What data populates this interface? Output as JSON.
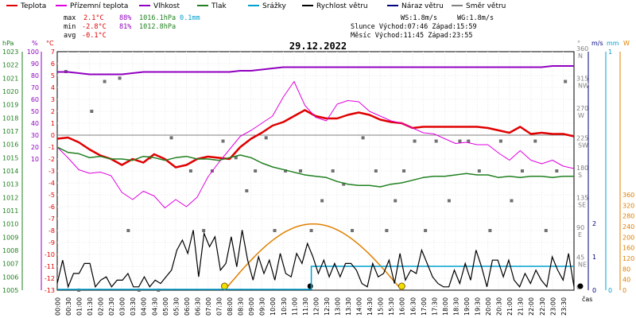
{
  "chart_data": {
    "type": "line",
    "title": "29.12.2022",
    "legend": [
      {
        "label": "Teplota",
        "color": "#e00000"
      },
      {
        "label": "Přízemní teplota",
        "color": "#e000e0"
      },
      {
        "label": "Vlhkost",
        "color": "#9000c0"
      },
      {
        "label": "Tlak",
        "color": "#208020"
      },
      {
        "label": "Srážky",
        "color": "#00a0d0"
      },
      {
        "label": "Rychlost větru",
        "color": "#000000"
      },
      {
        "label": "Náraz větru",
        "color": "#000080"
      },
      {
        "label": "Směr větru",
        "color": "#808080"
      }
    ],
    "stats": {
      "max_label": "max",
      "min_label": "min",
      "avg_label": "avg",
      "max_temp": "2.1°C",
      "max_hum": "88%",
      "max_press": "1016.1hPa",
      "max_rain": "0.1mm",
      "min_temp": "-2.8°C",
      "min_hum": "81%",
      "min_press": "1012.8hPa",
      "avg_temp": "-0.1°C",
      "ws": "WS:1.8m/s",
      "wg": "WG:1.8m/s",
      "sun": "Slunce Východ:07:46  Západ:15:59",
      "moon": "Měsíc  Východ:11:45  Západ:23:55"
    },
    "axes": {
      "hpa_label": "hPa",
      "pct_label": "%",
      "temp_label": "°C",
      "deg_label": "°",
      "ms_label": "m/s",
      "mm_label": "mm",
      "w_label": "W",
      "time_label": "čas",
      "hpa_ticks": [
        "1023",
        "1022",
        "1021",
        "1020",
        "1019",
        "1018",
        "1017",
        "1016",
        "1015",
        "1014",
        "1013",
        "1012",
        "1011",
        "1010",
        "1009",
        "1008",
        "1007",
        "1006",
        "1005"
      ],
      "pct_ticks": [
        "100",
        "90",
        "80",
        "70",
        "60",
        "50",
        "40",
        "30",
        "20",
        "10"
      ],
      "temp_ticks": [
        "7",
        "6",
        "5",
        "4",
        "3",
        "2",
        "1",
        "0",
        "-1",
        "-2",
        "-3",
        "-4",
        "-5",
        "-6",
        "-7",
        "-8",
        "-9",
        "-10",
        "-11",
        "-12",
        "-13"
      ],
      "dir_ticks": [
        {
          "deg": "360",
          "dir": "N"
        },
        {
          "deg": "315",
          "dir": "NW"
        },
        {
          "deg": "270",
          "dir": "W"
        },
        {
          "deg": "225",
          "dir": "SW"
        },
        {
          "deg": "180",
          "dir": "S"
        },
        {
          "deg": "135",
          "dir": "SE"
        },
        {
          "deg": "90",
          "dir": "E"
        },
        {
          "deg": "45",
          "dir": "NE"
        },
        {
          "deg": "0",
          "dir": ""
        }
      ],
      "ms_ticks": [
        "2",
        "1",
        "0"
      ],
      "mm_ticks": [
        "1",
        "0"
      ],
      "w_ticks": [
        "360",
        "320",
        "280",
        "240",
        "200",
        "160",
        "120",
        "80",
        "40",
        "0"
      ],
      "time_ticks": [
        "00:00",
        "00:30",
        "01:00",
        "01:30",
        "02:00",
        "02:30",
        "03:00",
        "03:30",
        "04:00",
        "04:30",
        "05:00",
        "05:30",
        "06:00",
        "06:30",
        "07:00",
        "07:30",
        "08:00",
        "08:30",
        "09:00",
        "09:30",
        "10:00",
        "10:30",
        "11:00",
        "11:30",
        "12:00",
        "12:30",
        "13:00",
        "13:30",
        "14:00",
        "14:30",
        "15:00",
        "15:30",
        "16:00",
        "16:30",
        "17:00",
        "17:30",
        "18:00",
        "18:30",
        "19:00",
        "19:30",
        "20:00",
        "20:30",
        "21:00",
        "21:30",
        "22:00",
        "22:30",
        "23:00",
        "23:30"
      ]
    },
    "temp_range": [
      -13,
      7
    ],
    "hours": [
      0,
      0.5,
      1,
      1.5,
      2,
      2.5,
      3,
      3.5,
      4,
      4.5,
      5,
      5.5,
      6,
      6.5,
      7,
      7.5,
      8,
      8.5,
      9,
      9.5,
      10,
      10.5,
      11,
      11.5,
      12,
      12.5,
      13,
      13.5,
      14,
      14.5,
      15,
      15.5,
      16,
      16.5,
      17,
      17.5,
      18,
      18.5,
      19,
      19.5,
      20,
      20.5,
      21,
      21.5,
      22,
      22.5,
      23,
      23.5,
      24
    ],
    "series": [
      {
        "name": "Teplota",
        "color": "#e00000",
        "width": 2.5,
        "values": [
          -0.3,
          -0.2,
          -0.6,
          -1.2,
          -1.7,
          -2.0,
          -2.5,
          -2.0,
          -2.3,
          -1.6,
          -2.0,
          -2.7,
          -2.5,
          -2.0,
          -1.8,
          -1.9,
          -2.0,
          -1.0,
          -0.3,
          0.2,
          0.8,
          1.1,
          1.6,
          2.1,
          1.6,
          1.4,
          1.4,
          1.7,
          1.9,
          1.7,
          1.3,
          1.1,
          1.0,
          0.6,
          0.7,
          0.7,
          0.7,
          0.7,
          0.7,
          0.7,
          0.6,
          0.4,
          0.2,
          0.7,
          0.1,
          0.2,
          0.1,
          0.1,
          -0.1
        ]
      },
      {
        "name": "Přízemní teplota",
        "color": "#e000e0",
        "width": 1,
        "values": [
          -1.0,
          -1.9,
          -2.9,
          -3.2,
          -3.1,
          -3.4,
          -4.8,
          -5.4,
          -4.7,
          -5.1,
          -6.1,
          -5.4,
          -6.0,
          -5.2,
          -3.5,
          -2.3,
          -1.2,
          -0.1,
          0.4,
          1.0,
          1.6,
          3.2,
          4.5,
          2.5,
          1.5,
          1.2,
          2.6,
          2.9,
          2.8,
          2.0,
          1.6,
          1.2,
          1.0,
          0.6,
          0.2,
          0.1,
          -0.3,
          -0.7,
          -0.6,
          -0.8,
          -0.8,
          -1.5,
          -2.1,
          -1.3,
          -2.1,
          -2.4,
          -2.1,
          -2.6,
          -2.8
        ]
      },
      {
        "name": "Vlhkost",
        "color": "#9000c0",
        "width": 2,
        "values": [
          83,
          83,
          82,
          81,
          81,
          81,
          81,
          82,
          83,
          83,
          83,
          83,
          83,
          83,
          83,
          83,
          83,
          84,
          84,
          85,
          86,
          87,
          87,
          87,
          87,
          87,
          87,
          87,
          87,
          87,
          87,
          87,
          87,
          87,
          87,
          87,
          87,
          87,
          87,
          87,
          87,
          87,
          87,
          87,
          87,
          87,
          88,
          88,
          88
        ]
      },
      {
        "name": "Tlak",
        "color": "#208020",
        "width": 1.5,
        "values": [
          1015.8,
          1015.4,
          1015.3,
          1015.0,
          1015.1,
          1014.9,
          1014.9,
          1014.8,
          1015.1,
          1015.0,
          1014.8,
          1015.0,
          1015.1,
          1014.9,
          1014.9,
          1014.8,
          1015.0,
          1015.2,
          1015.0,
          1014.6,
          1014.3,
          1014.1,
          1013.9,
          1013.7,
          1013.6,
          1013.5,
          1013.2,
          1013.0,
          1012.9,
          1012.9,
          1012.8,
          1013.0,
          1013.1,
          1013.3,
          1013.5,
          1013.6,
          1013.6,
          1013.7,
          1013.8,
          1013.7,
          1013.7,
          1013.5,
          1013.6,
          1013.5,
          1013.6,
          1013.6,
          1013.5,
          1013.6,
          1013.6
        ]
      }
    ],
    "wind_speed_ms": {
      "name": "Rychlost větru",
      "color": "#000000",
      "values": [
        0.2,
        0.9,
        0.1,
        0.5,
        0.5,
        0.8,
        0.8,
        0.1,
        0.3,
        0.4,
        0.1,
        0.3,
        0.3,
        0.5,
        0.1,
        0.1,
        0.4,
        0.1,
        0.3,
        0.2,
        0.4,
        0.6,
        1.2,
        1.5,
        1.1,
        1.8,
        0.4,
        1.7,
        1.3,
        1.6,
        0.6,
        0.8,
        1.6,
        0.7,
        1.8,
        0.9,
        0.3,
        1.0,
        0.5,
        0.9,
        0.3,
        1.1,
        0.5,
        0.4,
        1.1,
        0.8,
        1.4,
        1.0,
        0.5,
        0.9,
        0.4,
        0.8,
        0.4,
        0.8,
        0.8,
        0.6,
        0.2,
        0.1,
        0.8,
        0.4,
        0.5,
        0.9,
        0.2,
        1.1,
        0.3,
        0.6,
        0.5,
        1.2,
        0.8,
        0.4,
        0.2,
        0.1,
        0.1,
        0.6,
        0.2,
        0.8,
        0.3,
        1.2,
        0.7,
        0.1,
        0.9,
        0.9,
        0.4,
        0.9,
        0.3,
        0.1,
        0.5,
        0.2,
        0.6,
        0.3,
        0.1,
        1.0,
        0.6,
        0.3,
        1.1,
        0.1
      ]
    },
    "wind_gust_ms_label": "Náraz větru",
    "wind_dir_points": [
      [
        0.4,
        330
      ],
      [
        1.0,
        0
      ],
      [
        1.6,
        270
      ],
      [
        2.2,
        315
      ],
      [
        2.9,
        320
      ],
      [
        3.3,
        90
      ],
      [
        3.8,
        0
      ],
      [
        4.3,
        200
      ],
      [
        4.7,
        0
      ],
      [
        5.3,
        230
      ],
      [
        6.2,
        180
      ],
      [
        6.8,
        90
      ],
      [
        7.2,
        180
      ],
      [
        7.7,
        225
      ],
      [
        8.3,
        200
      ],
      [
        8.8,
        150
      ],
      [
        9.2,
        180
      ],
      [
        9.7,
        230
      ],
      [
        10.1,
        90
      ],
      [
        10.6,
        180
      ],
      [
        11.3,
        180
      ],
      [
        11.8,
        90
      ],
      [
        12.3,
        135
      ],
      [
        12.8,
        180
      ],
      [
        13.3,
        160
      ],
      [
        13.7,
        90
      ],
      [
        14.2,
        230
      ],
      [
        14.8,
        180
      ],
      [
        15.3,
        90
      ],
      [
        15.7,
        135
      ],
      [
        16.1,
        180
      ],
      [
        16.6,
        225
      ],
      [
        17.1,
        90
      ],
      [
        17.6,
        225
      ],
      [
        18.2,
        135
      ],
      [
        18.7,
        225
      ],
      [
        19.1,
        225
      ],
      [
        19.6,
        180
      ],
      [
        20.1,
        90
      ],
      [
        20.6,
        225
      ],
      [
        21.1,
        135
      ],
      [
        21.6,
        180
      ],
      [
        22.2,
        225
      ],
      [
        22.7,
        90
      ],
      [
        23.2,
        180
      ],
      [
        23.6,
        315
      ]
    ],
    "rain_mm": {
      "name": "Srážky",
      "color": "#00a0d0",
      "start_hour": 11.8,
      "value": 0.1
    },
    "solar_w": {
      "name": "W",
      "color": "#e08000",
      "rise_hour": 7.77,
      "set_hour": 16.0,
      "peak": 250
    },
    "max_solar_w": 360
  }
}
